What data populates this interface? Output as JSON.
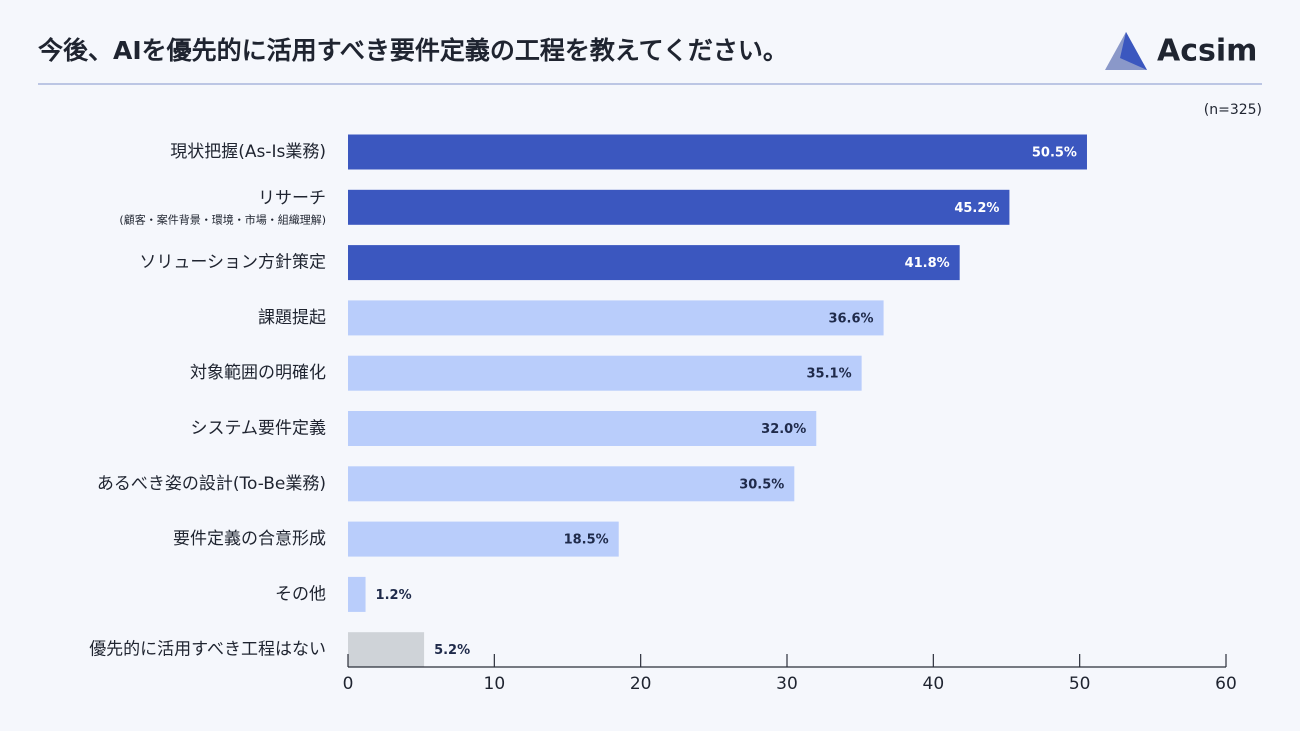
{
  "chart_data": {
    "type": "bar",
    "orientation": "horizontal",
    "title": "今後、AIを優先的に活用すべき要件定義の工程を教えてください。",
    "brand": "Acsim",
    "note": "(n=325)",
    "categories": [
      "現状把握(As-Is業務)",
      "リサーチ",
      "ソリューション方針策定",
      "課題提起",
      "対象範囲の明確化",
      "システム要件定義",
      "あるべき姿の設計(To-Be業務)",
      "要件定義の合意形成",
      "その他",
      "優先的に活用すべき工程はない"
    ],
    "category_sublabels": [
      null,
      "(顧客・案件背景・環境・市場・組織理解)",
      null,
      null,
      null,
      null,
      null,
      null,
      null,
      null
    ],
    "values": [
      50.5,
      45.2,
      41.8,
      36.6,
      35.1,
      32.0,
      30.5,
      18.5,
      1.2,
      5.2
    ],
    "value_labels": [
      "50.5%",
      "45.2%",
      "41.8%",
      "36.6%",
      "35.1%",
      "32.0%",
      "30.5%",
      "18.5%",
      "1.2%",
      "5.2%"
    ],
    "colors": [
      "#3b57bf",
      "#3b57bf",
      "#3b57bf",
      "#b9cdfb",
      "#b9cdfb",
      "#b9cdfb",
      "#b9cdfb",
      "#b9cdfb",
      "#b9cdfb",
      "#cfd3d8"
    ],
    "xlim": [
      0,
      60
    ],
    "xticks": [
      0,
      10,
      20,
      30,
      40,
      50,
      60
    ]
  }
}
